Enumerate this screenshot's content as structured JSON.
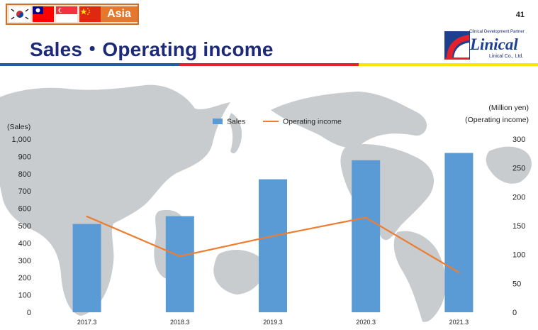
{
  "header": {
    "region_label": "Asia",
    "page_number": "41",
    "title": "Sales・Operating income",
    "flags": [
      "south-korea-flag",
      "taiwan-flag",
      "singapore-flag",
      "china-flag"
    ]
  },
  "logo": {
    "tagline": "Clinical Development Partner",
    "name": "Linical",
    "company": "Linical Co., Ltd."
  },
  "colors": {
    "title": "#1d2a78",
    "rule_blue": "#1f5ea8",
    "rule_red": "#e3222c",
    "rule_yellow": "#ffe600",
    "sales_bar": "#5b9bd5",
    "operating_income_line": "#ed7d31",
    "map_land": "#c9cccf"
  },
  "chart_data": {
    "type": "bar",
    "background": "world-map",
    "categories": [
      "2017.3",
      "2018.3",
      "2019.3",
      "2020.3",
      "2021.3"
    ],
    "series": [
      {
        "name": "Sales",
        "type": "bar",
        "axis": "left",
        "values": [
          510,
          555,
          768,
          878,
          920
        ]
      },
      {
        "name": "Operating income",
        "type": "line",
        "axis": "right",
        "values": [
          166,
          97,
          132,
          164,
          69
        ]
      }
    ],
    "left_axis": {
      "label": "(Sales)",
      "min": 0,
      "max": 1000,
      "step": 100,
      "tick_labels": [
        "0",
        "100",
        "200",
        "300",
        "400",
        "500",
        "600",
        "700",
        "800",
        "900",
        "1,000"
      ]
    },
    "right_axis": {
      "label_line1": "(Million yen)",
      "label_line2": "(Operating income)",
      "min": 0,
      "max": 300,
      "step": 50,
      "tick_labels": [
        "0",
        "50",
        "100",
        "150",
        "200",
        "250",
        "300"
      ]
    },
    "legend": {
      "position": "top-center",
      "items": [
        "Sales",
        "Operating income"
      ]
    },
    "grid": false
  }
}
